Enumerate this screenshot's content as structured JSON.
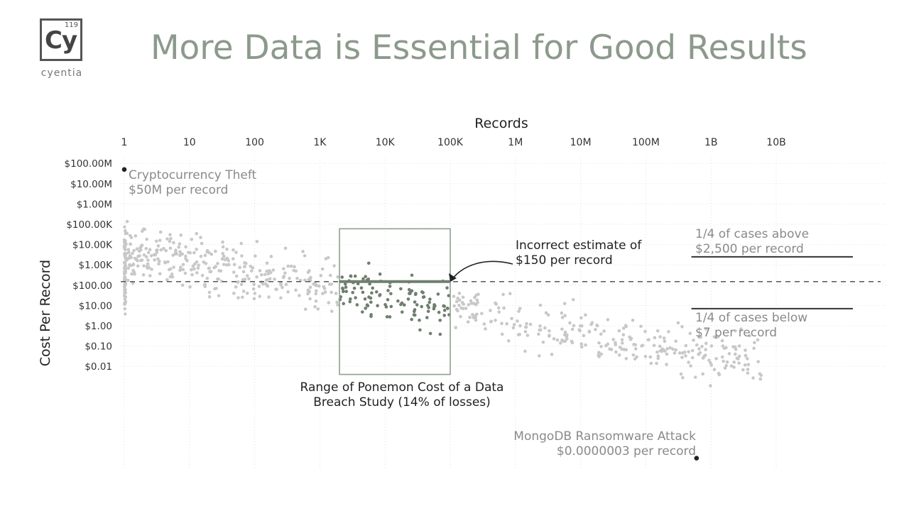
{
  "logo": {
    "number": "119",
    "symbol": "Cy",
    "name": "cyentia"
  },
  "title": "More Data is Essential for Good Results",
  "colors": {
    "highlight": "#6f7f6f",
    "background_points": "#c8c8c8",
    "box": "#8f9f8f",
    "dashed_line": "#444444",
    "text_gray": "#8a8a8a",
    "dark_text": "#222222"
  },
  "chart_data": {
    "type": "scatter",
    "xlabel": "Records",
    "ylabel": "Cost Per Record",
    "x_scale": "log",
    "y_scale": "log",
    "xlim": [
      1,
      100000000000
    ],
    "ylim": [
      1e-07,
      300000000
    ],
    "grid": true,
    "x_ticks": [
      {
        "value": 1,
        "label": "1"
      },
      {
        "value": 10,
        "label": "10"
      },
      {
        "value": 100,
        "label": "100"
      },
      {
        "value": 1000,
        "label": "1K"
      },
      {
        "value": 10000,
        "label": "10K"
      },
      {
        "value": 100000,
        "label": "100K"
      },
      {
        "value": 1000000,
        "label": "1M"
      },
      {
        "value": 10000000,
        "label": "10M"
      },
      {
        "value": 100000000,
        "label": "100M"
      },
      {
        "value": 1000000000,
        "label": "1B"
      },
      {
        "value": 10000000000,
        "label": "10B"
      }
    ],
    "y_ticks": [
      {
        "value": 100000000,
        "label": "$100.00M"
      },
      {
        "value": 10000000,
        "label": "$10.00M"
      },
      {
        "value": 1000000,
        "label": "$1.00M"
      },
      {
        "value": 100000,
        "label": "$100.00K"
      },
      {
        "value": 10000,
        "label": "$10.00K"
      },
      {
        "value": 1000,
        "label": "$1.00K"
      },
      {
        "value": 100,
        "label": "$100.00"
      },
      {
        "value": 10,
        "label": "$10.00"
      },
      {
        "value": 1,
        "label": "$1.00"
      },
      {
        "value": 0.1,
        "label": "$0.10"
      },
      {
        "value": 0.01,
        "label": "$0.01"
      }
    ],
    "reference_line": {
      "value": 150
    },
    "ponemon_box": {
      "x_range": [
        2000,
        100000
      ],
      "y_range": [
        0.004,
        60000
      ]
    },
    "quartile_lines": [
      {
        "value": 2500,
        "x_range": [
          500000000,
          150000000000
        ]
      },
      {
        "value": 7,
        "x_range": [
          500000000,
          150000000000
        ]
      }
    ],
    "annotations": [
      {
        "key": "crypto",
        "lines": [
          "Cryptocurrency Theft",
          "$50M per record"
        ]
      },
      {
        "key": "incorrect",
        "lines": [
          "Incorrect estimate of",
          "$150 per record"
        ]
      },
      {
        "key": "above",
        "lines": [
          "1/4 of cases above",
          "$2,500 per record"
        ]
      },
      {
        "key": "below",
        "lines": [
          "1/4 of cases below",
          "$7 per record"
        ]
      },
      {
        "key": "ponemon",
        "lines": [
          "Range of Ponemon Cost of a Data",
          "Breach Study (14% of losses)"
        ]
      },
      {
        "key": "mongo",
        "lines": [
          "MongoDB Ransomware Attack",
          "$0.0000003 per record"
        ]
      }
    ],
    "labeled_points": [
      {
        "name": "Cryptocurrency Theft",
        "x": 1,
        "y": 50000000
      },
      {
        "name": "MongoDB Ransomware Attack",
        "x": 600000000,
        "y": 3e-07
      }
    ]
  }
}
